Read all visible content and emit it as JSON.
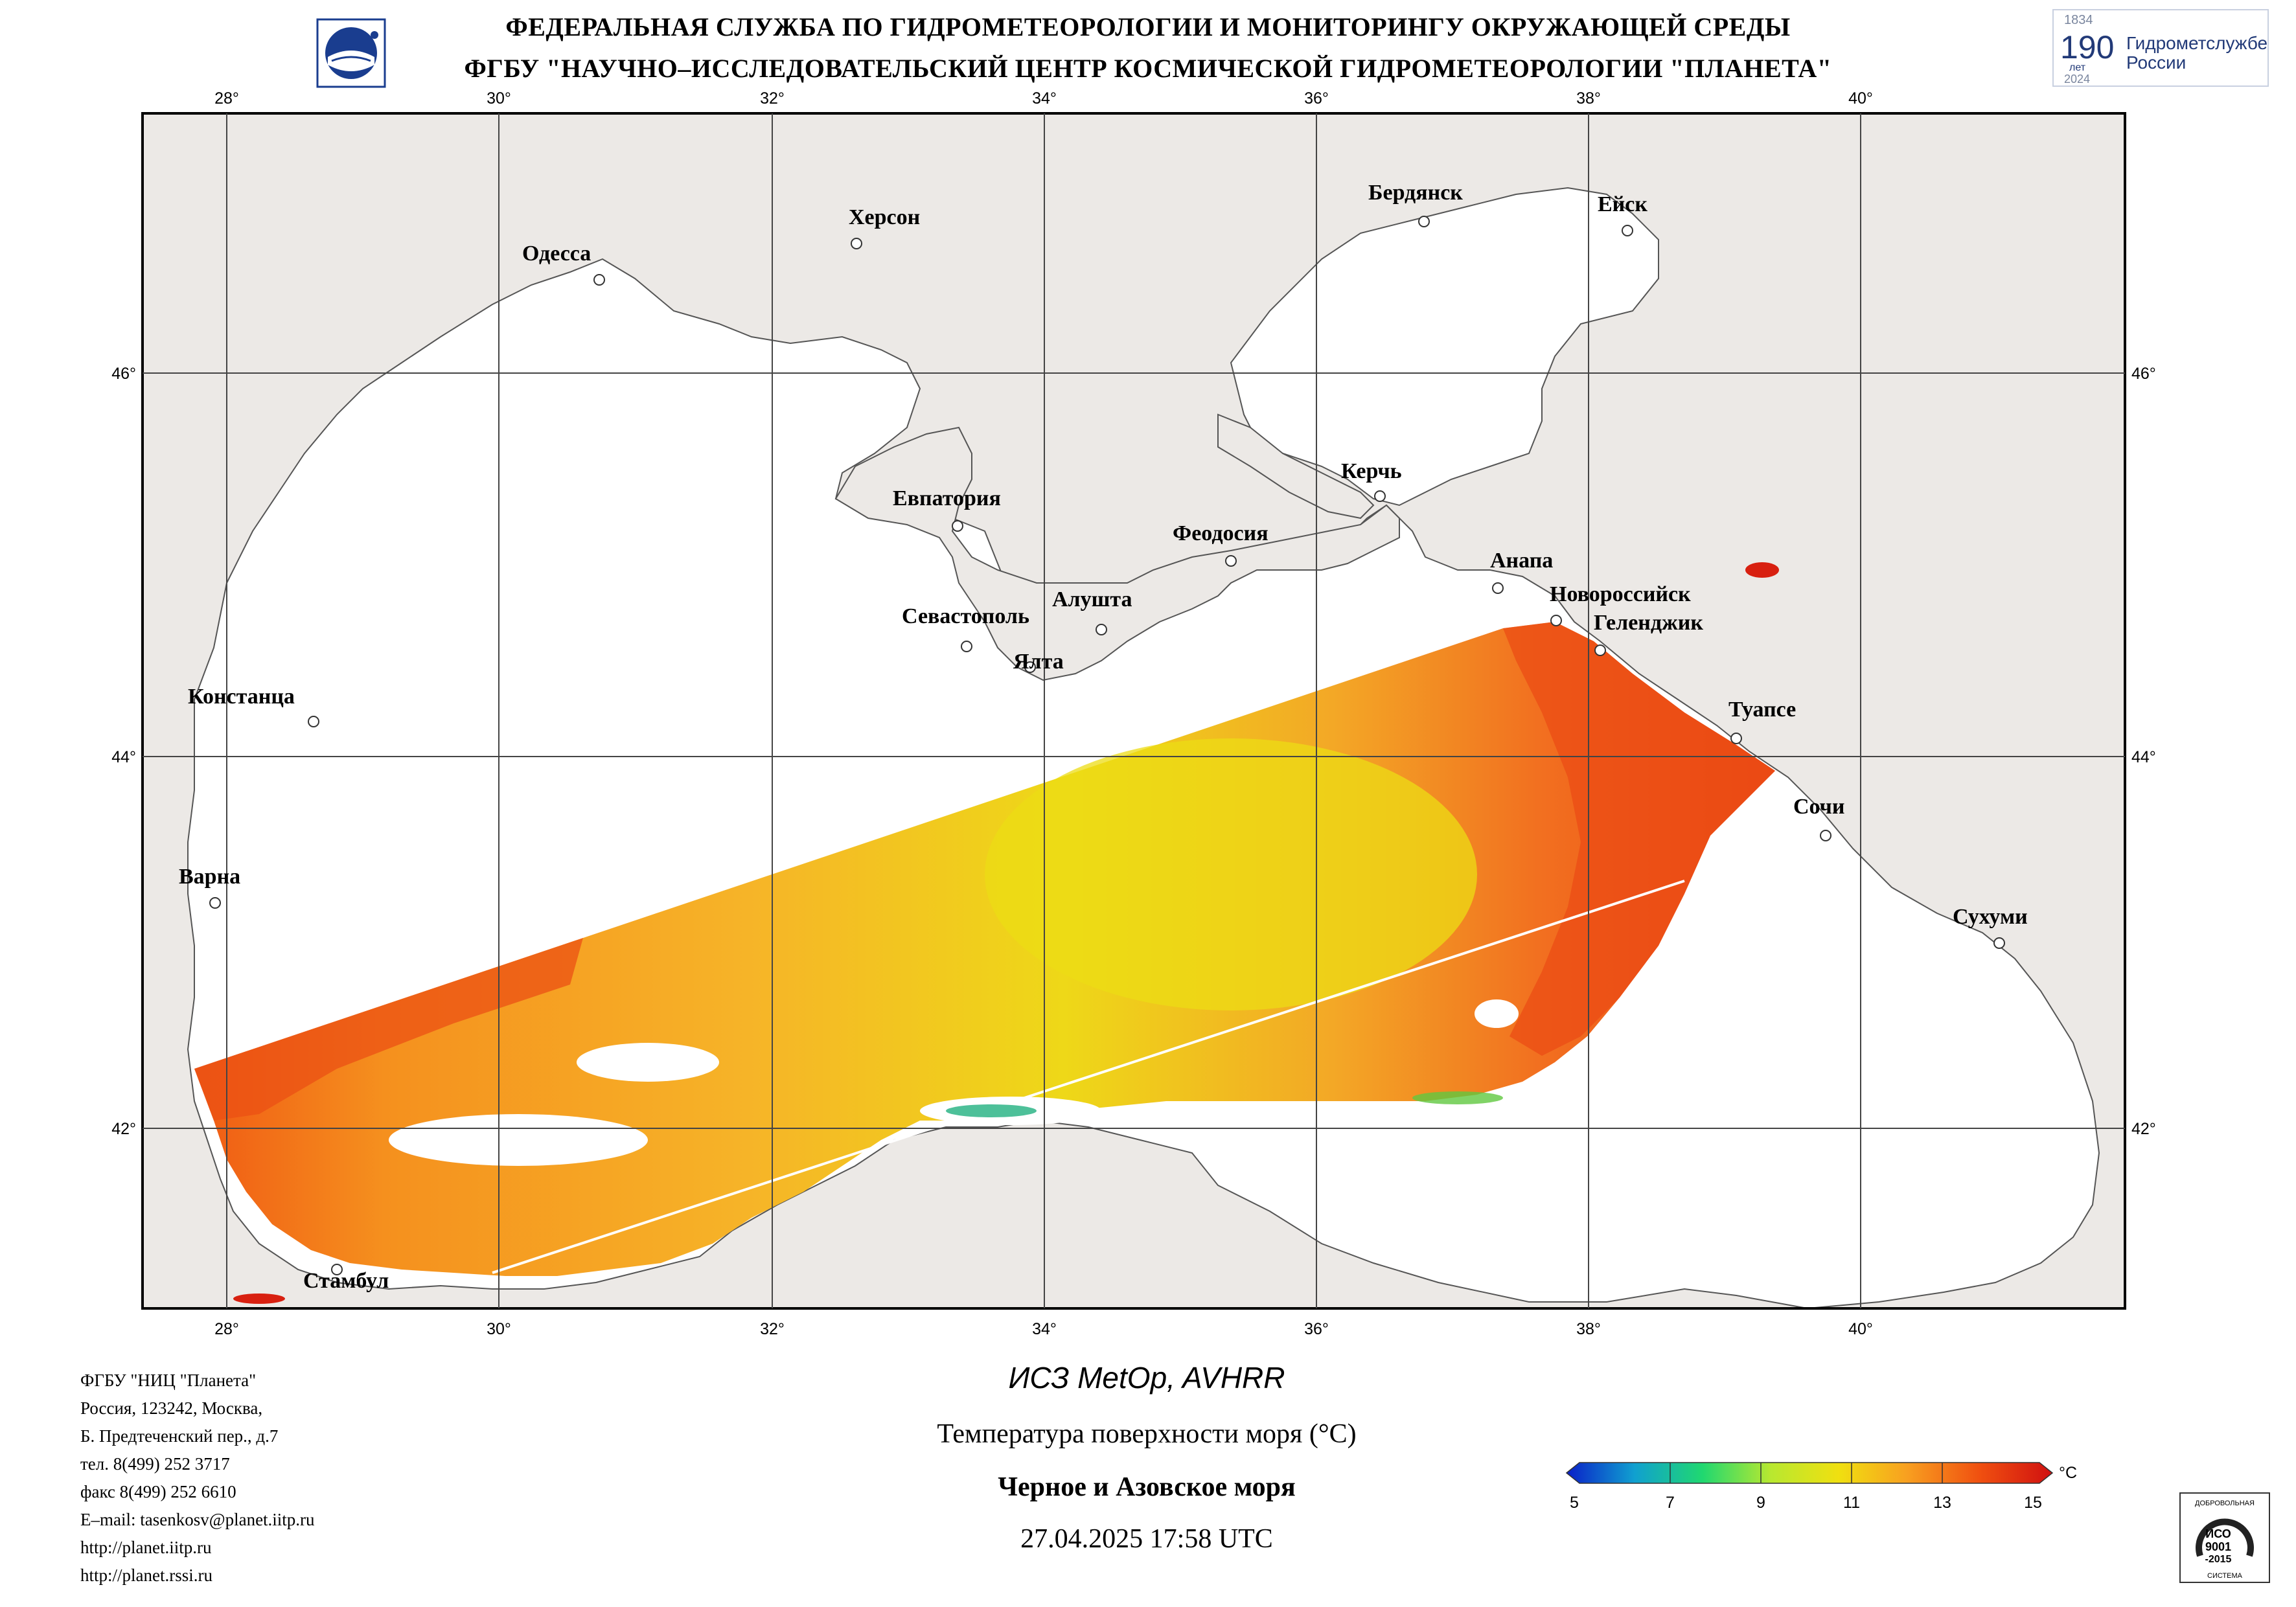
{
  "header": {
    "line1": "ФЕДЕРАЛЬНАЯ СЛУЖБА ПО ГИДРОМЕТЕОРОЛОГИИ И МОНИТОРИНГУ ОКРУЖАЮЩЕЙ СРЕДЫ",
    "line2": "ФГБУ \"НАУЧНО–ИССЛЕДОВАТЕЛЬСКИЙ ЦЕНТР КОСМИЧЕСКОЙ ГИДРОМЕТЕОРОЛОГИИ \"ПЛАНЕТА\""
  },
  "logo_right": {
    "year_start": "1834",
    "number": "190",
    "years_word": "лет",
    "year_end": "2024",
    "text_line1": "Гидрометслужбе",
    "text_line2": "России"
  },
  "map": {
    "lon_ticks": [
      "28°",
      "30°",
      "32°",
      "34°",
      "36°",
      "38°",
      "40°"
    ],
    "lat_ticks": [
      "46°",
      "44°",
      "42°"
    ],
    "colors": {
      "land": "#ece9e6",
      "sea_nodata": "#ffffff",
      "coast": "#555555",
      "grid": "#444444"
    },
    "cities": [
      {
        "name": "Одесса"
      },
      {
        "name": "Херсон"
      },
      {
        "name": "Бердянск"
      },
      {
        "name": "Ейск"
      },
      {
        "name": "Евпатория"
      },
      {
        "name": "Керчь"
      },
      {
        "name": "Феодосия"
      },
      {
        "name": "Анапа"
      },
      {
        "name": "Новороссийск"
      },
      {
        "name": "Геленджик"
      },
      {
        "name": "Севастополь"
      },
      {
        "name": "Алушта"
      },
      {
        "name": "Ялта"
      },
      {
        "name": "Констанца"
      },
      {
        "name": "Туапсе"
      },
      {
        "name": "Сочи"
      },
      {
        "name": "Варна"
      },
      {
        "name": "Сухуми"
      },
      {
        "name": "Стамбул"
      }
    ]
  },
  "colorbar": {
    "ticks": [
      "5",
      "7",
      "9",
      "11",
      "13",
      "15"
    ],
    "unit": "°C",
    "colors": [
      "#0a1fc8",
      "#10a0d0",
      "#20d870",
      "#b8e830",
      "#f0e010",
      "#f8a020",
      "#f05010",
      "#d01010"
    ]
  },
  "address": [
    "ФГБУ \"НИЦ \"Планета\"",
    "Россия, 123242, Москва,",
    "Б. Предтеченский пер., д.7",
    "тел. 8(499) 252 3717",
    "факс 8(499) 252 6610",
    "E–mail: tasenkosv@planet.iitp.ru",
    "http://planet.iitp.ru",
    "http://planet.rssi.ru"
  ],
  "caption": {
    "satellite": "ИСЗ MetOp, AVHRR",
    "parameter": "Температура поверхности моря (°C)",
    "region": "Черное и Азовское моря",
    "datetime": "27.04.2025 17:58 UTC"
  },
  "iso_badge": {
    "top": "ДОБРОВОЛЬНАЯ",
    "mid1": "ИСО",
    "mid2": "9001",
    "mid3": "-2015",
    "bottom": "СИСТЕМА"
  }
}
